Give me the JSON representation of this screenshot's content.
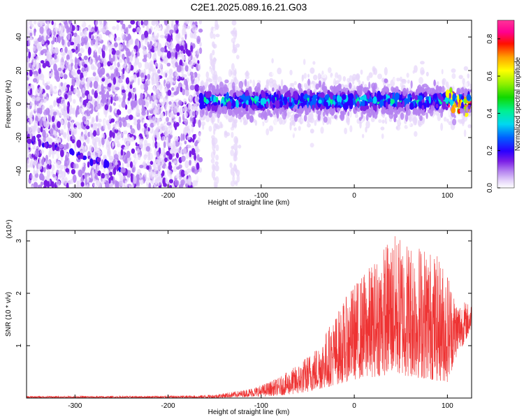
{
  "title": "C2E1.2025.089.16.21.G03",
  "chart_data": [
    {
      "type": "heatmap",
      "title": "C2E1.2025.089.16.21.G03",
      "xlabel": "Height of straight line (km)",
      "ylabel": "Frequency (Hz)",
      "xlim": [
        -352,
        126
      ],
      "ylim": [
        -50,
        50
      ],
      "x_ticks": [
        -300,
        -200,
        -100,
        0,
        100
      ],
      "x_tick_labels": [
        "-300",
        "-200",
        "-100",
        "0",
        "100"
      ],
      "y_ticks": [
        -40,
        -20,
        0,
        20,
        40
      ],
      "y_tick_labels": [
        "-40",
        "-20",
        "0",
        "20",
        "40"
      ],
      "grid": false,
      "colorbar": {
        "label": "Normalized spectral amplitude",
        "range": [
          0.0,
          0.9
        ],
        "ticks": [
          0.0,
          0.2,
          0.4,
          0.6,
          0.8
        ],
        "tick_labels": [
          "0.0",
          "0.2",
          "0.4",
          "0.6",
          "0.8"
        ],
        "colormap": [
          "#ffffff",
          "#dcc8f5",
          "#b482f0",
          "#8a2be2",
          "#5a00e0",
          "#0000ff",
          "#0090ff",
          "#00e6e6",
          "#00ff7f",
          "#00e000",
          "#a0ff00",
          "#ffff00",
          "#ff9900",
          "#ff0000",
          "#ff00aa",
          "#ff3399"
        ]
      },
      "features": {
        "noise_region_x": [
          -352,
          -165
        ],
        "signal_band": {
          "x": [
            -165,
            126
          ],
          "center_hz": 2,
          "half_width_hz": 6,
          "amplitude_range": [
            0.2,
            0.85
          ]
        },
        "chirp_track": {
          "x": [
            -352,
            -245
          ],
          "y_start_hz": -20,
          "y_end_hz": -40
        },
        "vertical_streaks_x": [
          -212,
          -150,
          -128
        ]
      }
    },
    {
      "type": "line",
      "xlabel": "Height of straight line (km)",
      "ylabel": "SNR (10 * v/v)",
      "y_multiplier": "(x10⁴)",
      "xlim": [
        -352,
        126
      ],
      "ylim": [
        0,
        3.2
      ],
      "x_ticks": [
        -300,
        -200,
        -100,
        0,
        100
      ],
      "x_tick_labels": [
        "-300",
        "-200",
        "-100",
        "0",
        "100"
      ],
      "y_ticks": [
        1,
        2,
        3
      ],
      "y_tick_labels": [
        "1",
        "2",
        "3"
      ],
      "grid": false,
      "series_color": "#ee3333",
      "envelope": [
        {
          "x": -352,
          "lo": 0.0,
          "hi": 0.04
        },
        {
          "x": -250,
          "lo": 0.0,
          "hi": 0.04
        },
        {
          "x": -170,
          "lo": 0.0,
          "hi": 0.05
        },
        {
          "x": -150,
          "lo": 0.0,
          "hi": 0.07
        },
        {
          "x": -120,
          "lo": 0.02,
          "hi": 0.15
        },
        {
          "x": -100,
          "lo": 0.03,
          "hi": 0.25
        },
        {
          "x": -80,
          "lo": 0.05,
          "hi": 0.4
        },
        {
          "x": -60,
          "lo": 0.08,
          "hi": 0.65
        },
        {
          "x": -40,
          "lo": 0.15,
          "hi": 1.0
        },
        {
          "x": -20,
          "lo": 0.25,
          "hi": 1.6
        },
        {
          "x": 0,
          "lo": 0.35,
          "hi": 2.2
        },
        {
          "x": 20,
          "lo": 0.4,
          "hi": 2.6
        },
        {
          "x": 40,
          "lo": 0.45,
          "hi": 3.15
        },
        {
          "x": 60,
          "lo": 0.4,
          "hi": 3.05
        },
        {
          "x": 80,
          "lo": 0.35,
          "hi": 2.9
        },
        {
          "x": 100,
          "lo": 0.3,
          "hi": 2.5
        },
        {
          "x": 110,
          "lo": 0.8,
          "hi": 1.9
        },
        {
          "x": 126,
          "lo": 1.3,
          "hi": 1.8
        }
      ]
    }
  ]
}
